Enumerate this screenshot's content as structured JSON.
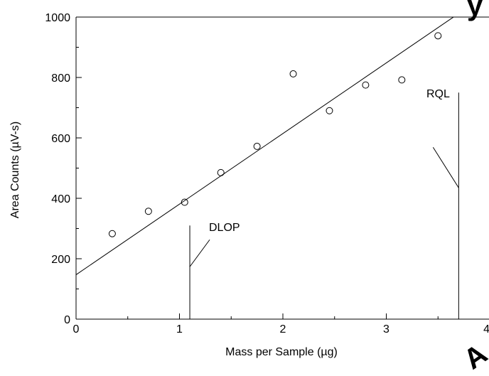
{
  "chart_data": {
    "type": "scatter",
    "xlabel": "Mass per Sample (µg)",
    "ylabel": "Area Counts (µV-s)",
    "xlim": [
      0,
      4
    ],
    "ylim": [
      0,
      1000
    ],
    "x_ticks": [
      0,
      1,
      2,
      3,
      4
    ],
    "y_ticks": [
      0,
      200,
      400,
      600,
      800,
      1000
    ],
    "x_tick_labels": [
      "0",
      "1",
      "2",
      "3",
      "4"
    ],
    "y_tick_labels": [
      "0",
      "200",
      "400",
      "600",
      "800",
      "1000"
    ],
    "grid": false,
    "series": [
      {
        "type": "scatter",
        "marker": "open-circle",
        "x": [
          0.35,
          0.7,
          1.05,
          1.4,
          1.75,
          2.1,
          2.45,
          2.8,
          3.15,
          3.5
        ],
        "y": [
          283,
          357,
          387,
          485,
          572,
          812,
          690,
          775,
          792,
          938
        ]
      },
      {
        "type": "line",
        "x": [
          0,
          3.65
        ],
        "y": [
          147,
          1000
        ]
      }
    ],
    "annotations": [
      {
        "label": "DLOP",
        "x": 1.1,
        "y_top": 310
      },
      {
        "label": "RQL",
        "x": 3.7,
        "y_top": 750
      }
    ]
  },
  "watermark_fragments": [
    "y",
    "A"
  ]
}
